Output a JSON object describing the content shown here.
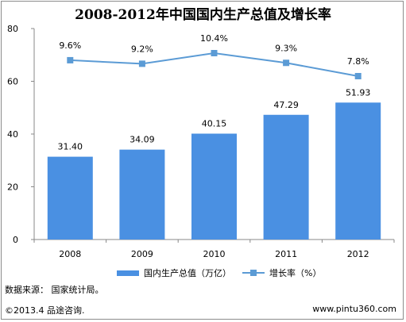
{
  "chart_data": {
    "type": "bar",
    "title": "2008-2012年中国国内生产总值及增长率",
    "categories": [
      "2008",
      "2009",
      "2010",
      "2011",
      "2012"
    ],
    "series": [
      {
        "name": "国内生产总值（万亿）",
        "type": "bar",
        "color": "#4a90e2",
        "values": [
          31.4,
          34.09,
          40.15,
          47.29,
          51.93
        ],
        "labels": [
          "31.40",
          "34.09",
          "40.15",
          "47.29",
          "51.93"
        ]
      },
      {
        "name": "增长率（%）",
        "type": "line",
        "color": "#5b9bd5",
        "values": [
          9.6,
          9.2,
          10.4,
          9.3,
          7.8
        ],
        "labels": [
          "9.6%",
          "9.2%",
          "10.4%",
          "9.3%",
          "7.8%"
        ]
      }
    ],
    "y_ticks": [
      "0",
      "20",
      "40",
      "60",
      "80"
    ],
    "ylim": [
      0,
      80
    ]
  },
  "source": "数据来源： 国家统计局。",
  "footer": {
    "copyright": "©2013.4 品途咨询.",
    "url": "www.pintu360.com"
  }
}
